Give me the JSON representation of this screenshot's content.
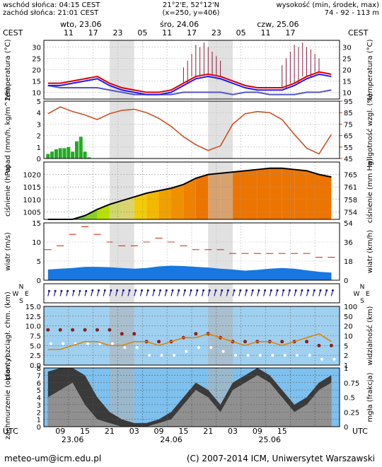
{
  "header": {
    "sunrise": "wschód słońca: 04:15 CEST",
    "sunset": "zachód słońca: 21:01 CEST",
    "coords": "21°2'E, 52°12'N",
    "grid": "(x=250, y=406)",
    "altitude_title": "wysokość (min, środek, max)",
    "altitude_values": "74 - 92 - 113 m",
    "tz_label": "CEST",
    "tz_bottom": "UTC"
  },
  "days_top": [
    {
      "label": "wto, 23.06",
      "hour": 14
    },
    {
      "label": "śro, 24.06",
      "hour": 38
    },
    {
      "label": "czw, 25.06",
      "hour": 62
    }
  ],
  "hours_top": [
    "11",
    "17",
    "23",
    "05",
    "11",
    "17",
    "23",
    "05",
    "11",
    "17"
  ],
  "hours_bottom": [
    "09",
    "15",
    "21",
    "03",
    "09",
    "15",
    "21",
    "03",
    "09",
    "15"
  ],
  "dates_bottom": [
    {
      "label": "23.06",
      "hour": 12
    },
    {
      "label": "24.06",
      "hour": 36
    },
    {
      "label": "25.06",
      "hour": 60
    }
  ],
  "footer": {
    "email": "meteo-um@icm.edu.pl",
    "copyright": "(C) 2007-2014 ICM, Uniwersytet Warszawski"
  },
  "chart_data": [
    {
      "type": "line",
      "panel": "temperature",
      "ylabel": "temperatura (°C)",
      "ylabel_right": "temperatura (°C)",
      "ylim": [
        7,
        33
      ],
      "yticks": [
        10,
        15,
        20,
        25,
        30
      ],
      "x_hours": [
        6,
        9,
        12,
        15,
        18,
        21,
        24,
        27,
        30,
        33,
        36,
        39,
        42,
        45,
        48,
        51,
        54,
        57,
        60,
        63,
        66,
        69,
        72,
        75
      ],
      "series": [
        {
          "name": "temperatura",
          "color": "#dd0000",
          "values": [
            14,
            14,
            15,
            16,
            17,
            14,
            12,
            11,
            10,
            10,
            11,
            14,
            17,
            18,
            17,
            15,
            13,
            12,
            12,
            12,
            14,
            17,
            19,
            18
          ]
        },
        {
          "name": "odczuwalna",
          "color": "#1a1aff",
          "values": [
            13,
            13,
            14,
            15,
            16,
            13,
            11,
            10,
            9,
            9,
            10,
            13,
            16,
            17,
            16,
            14,
            12,
            11,
            11,
            11,
            13,
            16,
            18,
            17
          ]
        },
        {
          "name": "punkt rosy",
          "color": "#5555cc",
          "values": [
            13,
            12,
            12,
            12,
            12,
            11,
            10,
            9,
            9,
            9,
            9,
            10,
            10,
            10,
            10,
            9,
            10,
            10,
            9,
            9,
            9,
            10,
            10,
            11
          ]
        }
      ],
      "gust_hours": [
        39,
        40,
        41,
        42,
        43,
        44,
        45,
        46,
        47,
        48,
        63,
        64,
        65,
        66,
        67,
        68,
        69,
        70,
        71,
        72
      ],
      "gust_tops": [
        21,
        24,
        27,
        31,
        30,
        32,
        30,
        28,
        26,
        24,
        22,
        25,
        28,
        31,
        30,
        32,
        30,
        29,
        27,
        25
      ],
      "color": "#8b1a3a"
    },
    {
      "type": "bar",
      "panel": "precipitation",
      "ylabel": "opad (mm/h, kg/m^2/h)",
      "ylabel_right": "wilgotność wzgl. (%)",
      "ylim": [
        0,
        5
      ],
      "yticks": [
        0,
        1,
        2,
        3,
        4,
        5
      ],
      "yticks_right": [
        45,
        55,
        65,
        75,
        85,
        95
      ],
      "precip_hours": [
        6,
        7,
        8,
        9,
        10,
        11,
        12,
        13,
        14,
        15,
        16,
        17,
        18
      ],
      "precip_values": [
        0.4,
        0.6,
        0.8,
        0.9,
        0.9,
        1.0,
        0.6,
        1.5,
        1.9,
        0.6,
        0.1,
        0.0,
        0.0
      ],
      "humidity_hours": [
        6,
        9,
        12,
        15,
        18,
        21,
        24,
        27,
        30,
        33,
        36,
        39,
        42,
        45,
        48,
        51,
        54,
        57,
        60,
        63,
        66,
        69,
        72,
        75
      ],
      "humidity": [
        84,
        90,
        86,
        83,
        79,
        84,
        87,
        88,
        85,
        80,
        73,
        64,
        57,
        52,
        56,
        75,
        84,
        86,
        85,
        79,
        66,
        54,
        49,
        66
      ],
      "humidity_color": "#c84818",
      "precip_color": "#22aa22"
    },
    {
      "type": "area",
      "panel": "pressure",
      "ylabel": "ciśnienie (hPa)",
      "ylabel_right": "ciśnienie (mm Hg)",
      "ylim": [
        1002,
        1025
      ],
      "yticks": [
        1005,
        1010,
        1015,
        1020
      ],
      "yticks_right": [
        "765",
        "761",
        "758",
        "754"
      ],
      "x_hours": [
        6,
        9,
        12,
        15,
        18,
        21,
        24,
        27,
        30,
        33,
        36,
        39,
        42,
        45,
        48,
        51,
        54,
        57,
        60,
        63,
        66,
        69,
        72,
        75
      ],
      "values": [
        1002,
        1002,
        1002,
        1003.5,
        1006,
        1008,
        1009.5,
        1011,
        1012.5,
        1013.5,
        1014.5,
        1016,
        1018.5,
        1020,
        1020.5,
        1021,
        1021.5,
        1022,
        1022.5,
        1022.5,
        1022,
        1021.5,
        1020,
        1019
      ],
      "color": "#000000"
    },
    {
      "type": "line",
      "panel": "wind",
      "ylabel": "wiatr (m/s)",
      "ylabel_right": "wiatr (km/h)",
      "ylim": [
        0,
        15
      ],
      "yticks": [
        0,
        5,
        10,
        15
      ],
      "yticks_right": [
        "0",
        "18",
        "36",
        "54"
      ],
      "x_hours": [
        6,
        9,
        12,
        15,
        18,
        21,
        24,
        27,
        30,
        33,
        36,
        39,
        42,
        45,
        48,
        51,
        54,
        57,
        60,
        63,
        66,
        69,
        72,
        75
      ],
      "wind_speed": [
        2.8,
        3.0,
        3.2,
        3.5,
        3.5,
        3.4,
        3.2,
        3.0,
        3.2,
        3.6,
        3.8,
        3.7,
        3.5,
        3.3,
        3.0,
        2.8,
        2.5,
        2.7,
        3.0,
        3.2,
        3.0,
        2.6,
        2.2,
        2.0
      ],
      "gust": [
        8,
        9,
        12,
        14,
        12,
        10,
        9,
        9,
        10,
        11,
        10,
        9,
        8,
        8,
        8,
        7,
        7,
        7,
        7,
        7,
        7,
        7,
        6,
        6
      ],
      "wind_color": "#1877e0",
      "gust_color": "#cc2200"
    },
    {
      "type": "scatter",
      "panel": "visibility",
      "ylabel": "pion. rozciągł. chm. (km)",
      "ylabel_right": "widzialność (km)",
      "ylim": [
        0,
        15
      ],
      "yticks": [
        "0.0",
        "2.5",
        "5.0",
        "7.5",
        "10.0",
        "12.5",
        "15.0"
      ],
      "yticks_right": [
        "1",
        "2",
        "5",
        "10",
        "20",
        "50",
        "100"
      ],
      "x_hours": [
        6,
        9,
        12,
        15,
        18,
        21,
        24,
        27,
        30,
        33,
        36,
        39,
        42,
        45,
        48,
        51,
        54,
        57,
        60,
        63,
        66,
        69,
        72,
        75
      ],
      "visibility": [
        4,
        4,
        5,
        6,
        6,
        5,
        5,
        6,
        6,
        5,
        6,
        7,
        7,
        8,
        7,
        6,
        5,
        6,
        6,
        5,
        6,
        7,
        8,
        6
      ],
      "cloud_top": [
        9,
        9,
        9,
        9,
        9,
        9,
        8,
        8,
        6,
        6,
        6,
        7,
        8,
        8,
        7,
        6,
        6,
        6,
        6,
        6,
        6,
        6,
        5,
        5
      ],
      "visibility_color": "#e08000",
      "cloud_color": "#8b2020"
    },
    {
      "type": "area",
      "panel": "clouds",
      "ylabel": "zachmurzenie (oktanty)",
      "ylabel_right": "mgła (frakcja)",
      "ylim": [
        0,
        8
      ],
      "yticks": [
        0,
        1,
        2,
        3,
        4,
        5,
        6,
        7,
        8
      ],
      "yticks_right": [
        "0",
        "0.25",
        "0.5",
        "0.75",
        "1"
      ],
      "x_hours": [
        6,
        9,
        12,
        15,
        18,
        21,
        24,
        27,
        30,
        33,
        36,
        39,
        42,
        45,
        48,
        51,
        54,
        57,
        60,
        63,
        66,
        69,
        72,
        75
      ],
      "total_cloud": [
        7.5,
        8,
        8,
        7,
        4,
        2,
        1,
        0.5,
        0.5,
        1,
        2,
        4,
        6,
        5,
        3,
        6,
        7,
        8,
        7,
        5,
        3,
        4,
        6,
        7
      ],
      "low_cloud": [
        4,
        5,
        6,
        3,
        1,
        0.5,
        0,
        0,
        0,
        0.5,
        1,
        3,
        5,
        4,
        2,
        5,
        6,
        7,
        6,
        4,
        2,
        3,
        5,
        6
      ],
      "total_color": "#3a3a3a",
      "low_color": "#909090",
      "bg_color": "#7ec0ee"
    }
  ]
}
